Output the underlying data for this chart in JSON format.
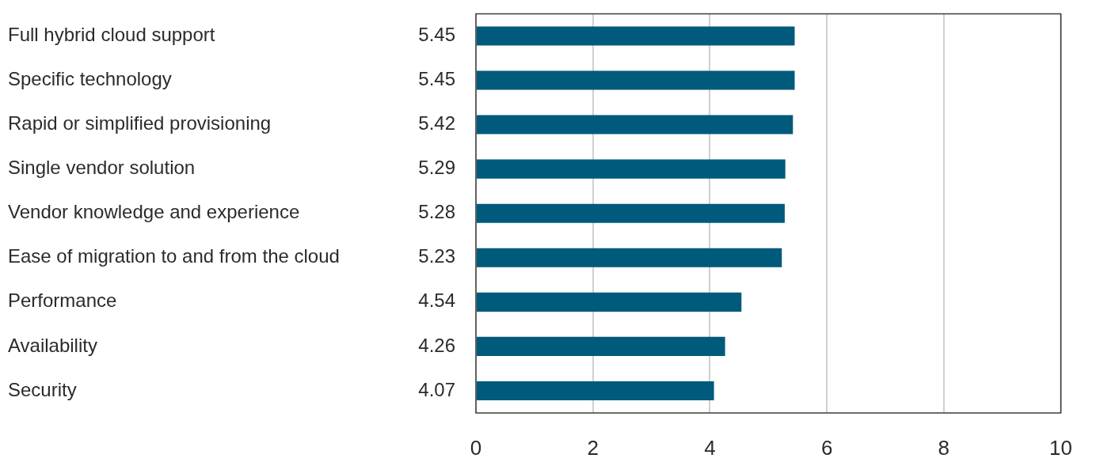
{
  "chart_data": {
    "type": "bar",
    "orientation": "horizontal",
    "categories": [
      "Full hybrid cloud support",
      "Specific technology",
      "Rapid or simplified provisioning",
      "Single vendor solution",
      "Vendor knowledge and experience",
      "Ease of migration to and from the cloud",
      "Performance",
      "Availability",
      "Security"
    ],
    "values": [
      5.45,
      5.45,
      5.42,
      5.29,
      5.28,
      5.23,
      4.54,
      4.26,
      4.07
    ],
    "color": "#005a7b",
    "xlim": [
      0,
      10
    ],
    "xticks": [
      0,
      2,
      4,
      6,
      8,
      10
    ],
    "grid": "x",
    "data_labels": true
  }
}
